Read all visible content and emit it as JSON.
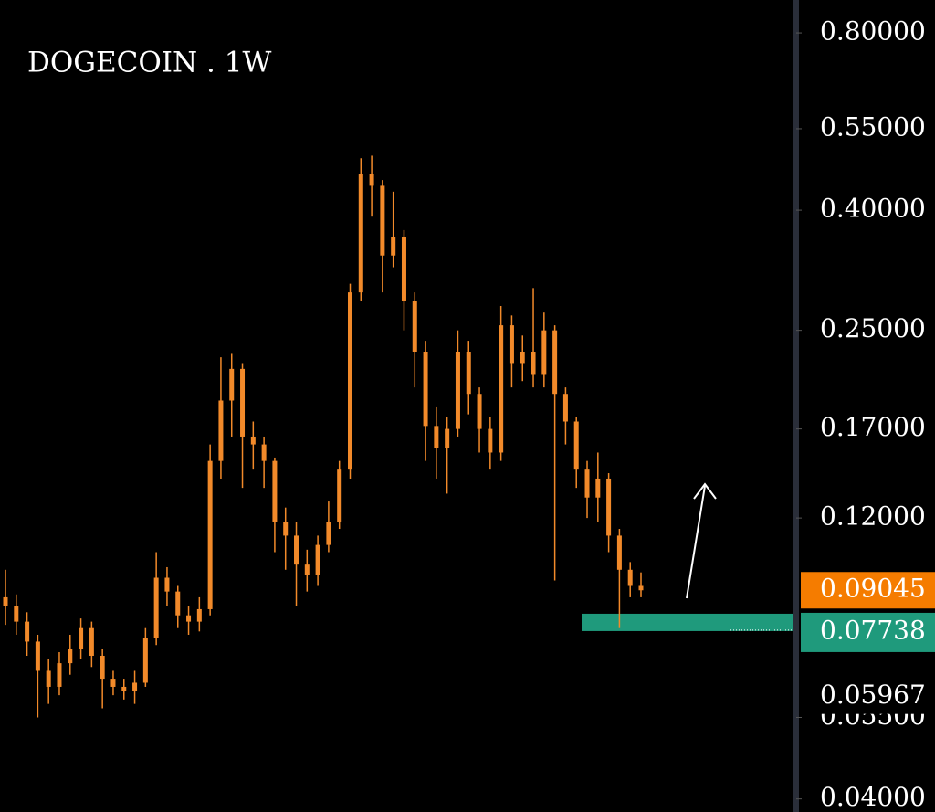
{
  "chart_data": {
    "type": "candlestick",
    "title": "DOGECOIN . 1W",
    "log_scale": true,
    "ylim": [
      0.038,
      0.91
    ],
    "yticks": [
      {
        "value": 0.8,
        "label": "0.80000"
      },
      {
        "value": 0.55,
        "label": "0.55000"
      },
      {
        "value": 0.4,
        "label": "0.40000"
      },
      {
        "value": 0.25,
        "label": "0.25000"
      },
      {
        "value": 0.17,
        "label": "0.17000"
      },
      {
        "value": 0.12,
        "label": "0.12000"
      },
      {
        "value": 0.055,
        "label": "0.05500"
      },
      {
        "value": 0.04,
        "label": "0.04000"
      }
    ],
    "color": "#f28a2a",
    "series": [
      {
        "open": [
          0.088,
          0.085,
          0.08,
          0.074,
          0.066,
          0.062,
          0.068,
          0.072,
          0.078,
          0.07,
          0.064,
          0.062,
          0.061,
          0.063,
          0.075,
          0.095,
          0.09,
          0.082,
          0.08,
          0.084,
          0.15,
          0.19,
          0.215,
          0.165,
          0.16,
          0.15,
          0.118,
          0.112,
          0.1,
          0.096,
          0.108,
          0.118,
          0.145,
          0.29,
          0.46,
          0.44,
          0.335,
          0.36,
          0.28,
          0.23,
          0.172,
          0.158,
          0.17,
          0.23,
          0.195,
          0.17,
          0.155,
          0.255,
          0.22,
          0.23,
          0.21,
          0.25,
          0.195,
          0.175,
          0.145,
          0.13,
          0.14,
          0.112,
          0.098,
          0.092
        ],
        "high": [
          0.098,
          0.089,
          0.083,
          0.076,
          0.069,
          0.071,
          0.076,
          0.081,
          0.08,
          0.072,
          0.066,
          0.064,
          0.066,
          0.078,
          0.105,
          0.099,
          0.092,
          0.085,
          0.088,
          0.16,
          0.225,
          0.228,
          0.22,
          0.175,
          0.165,
          0.152,
          0.125,
          0.118,
          0.106,
          0.112,
          0.128,
          0.15,
          0.3,
          0.49,
          0.495,
          0.45,
          0.43,
          0.37,
          0.29,
          0.24,
          0.185,
          0.178,
          0.25,
          0.24,
          0.2,
          0.178,
          0.275,
          0.265,
          0.245,
          0.295,
          0.268,
          0.255,
          0.2,
          0.178,
          0.15,
          0.155,
          0.143,
          0.115,
          0.101,
          0.097
        ],
        "low": [
          0.079,
          0.076,
          0.07,
          0.055,
          0.058,
          0.06,
          0.065,
          0.069,
          0.067,
          0.057,
          0.06,
          0.059,
          0.058,
          0.062,
          0.073,
          0.085,
          0.078,
          0.076,
          0.077,
          0.082,
          0.14,
          0.165,
          0.135,
          0.145,
          0.135,
          0.105,
          0.098,
          0.085,
          0.09,
          0.092,
          0.105,
          0.115,
          0.14,
          0.28,
          0.39,
          0.29,
          0.32,
          0.25,
          0.2,
          0.15,
          0.14,
          0.132,
          0.165,
          0.18,
          0.155,
          0.145,
          0.15,
          0.2,
          0.205,
          0.2,
          0.2,
          0.094,
          0.16,
          0.135,
          0.12,
          0.118,
          0.105,
          0.078,
          0.088,
          0.088
        ],
        "close": [
          0.085,
          0.08,
          0.074,
          0.066,
          0.062,
          0.068,
          0.072,
          0.078,
          0.07,
          0.064,
          0.062,
          0.061,
          0.063,
          0.075,
          0.095,
          0.09,
          0.082,
          0.08,
          0.084,
          0.15,
          0.19,
          0.215,
          0.165,
          0.16,
          0.15,
          0.118,
          0.112,
          0.1,
          0.096,
          0.108,
          0.118,
          0.145,
          0.29,
          0.46,
          0.44,
          0.335,
          0.36,
          0.28,
          0.23,
          0.172,
          0.158,
          0.17,
          0.23,
          0.195,
          0.17,
          0.155,
          0.255,
          0.22,
          0.23,
          0.21,
          0.25,
          0.195,
          0.175,
          0.145,
          0.13,
          0.14,
          0.112,
          0.098,
          0.092,
          0.09045
        ]
      }
    ],
    "last_price": 0.09045,
    "last_price_color": "#f57c00",
    "support": 0.07738,
    "support_color": "#1f9a7c",
    "marker_price": 0.05967
  }
}
